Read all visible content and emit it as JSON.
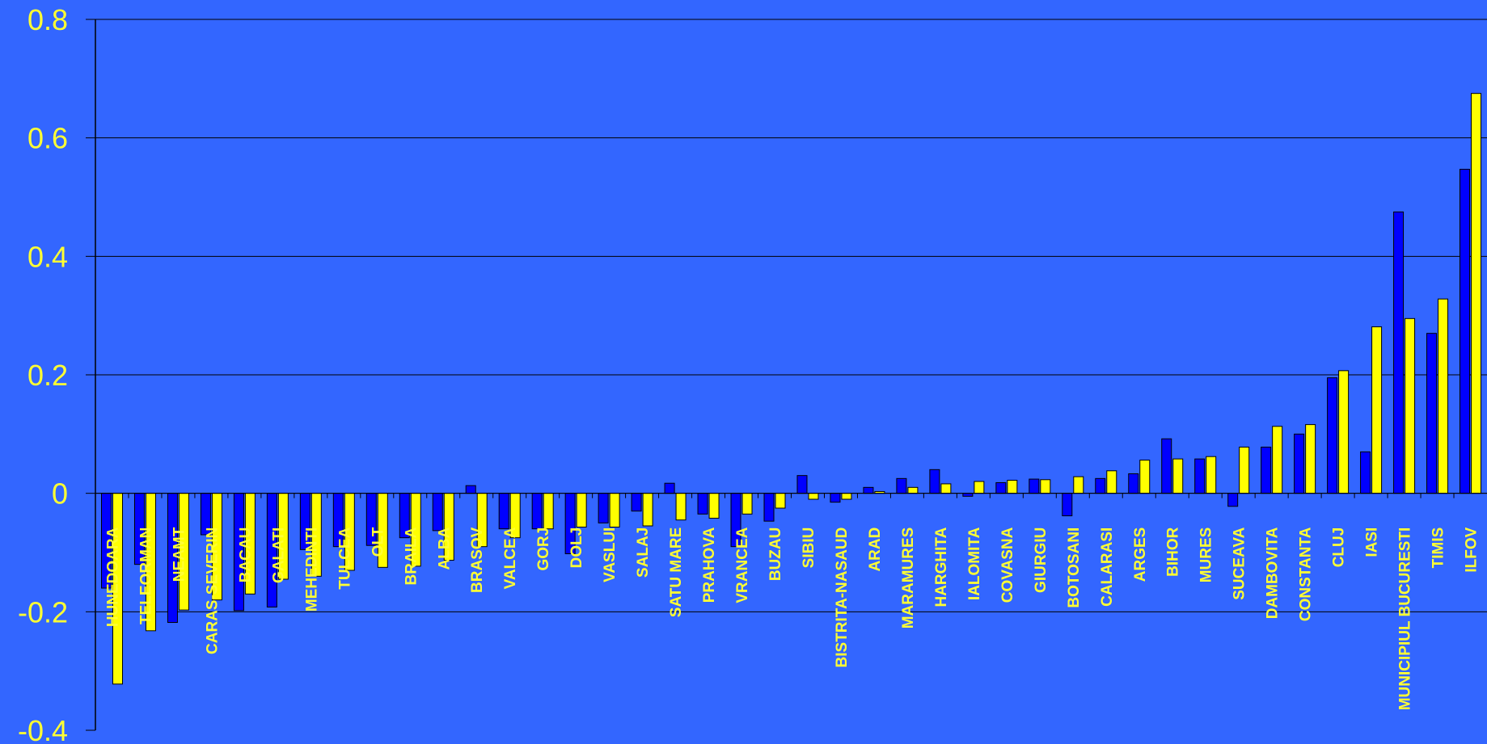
{
  "chart_data": {
    "type": "bar",
    "ylim": [
      -0.4,
      0.8
    ],
    "yticks": [
      0.8,
      0.6,
      0.4,
      0.2,
      0,
      -0.2,
      -0.4
    ],
    "ytick_labels": [
      "0.8",
      "0.6",
      "0.4",
      "0.2",
      "0",
      "-0.2",
      "-0.4"
    ],
    "grid": true,
    "categories": [
      "HUNEDOARA",
      "TELEORMAN",
      "NEAMT",
      "CARAS-SEVERIN",
      "BACAU",
      "GALATI",
      "MEHEDINTI",
      "TULCEA",
      "OLT",
      "BRAILA",
      "ALBA",
      "BRASOV",
      "VALCEA",
      "GORJ",
      "DOLJ",
      "VASLUI",
      "SALAJ",
      "SATU MARE",
      "PRAHOVA",
      "VRANCEA",
      "BUZAU",
      "SIBIU",
      "BISTRITA-NASAUD",
      "ARAD",
      "MARAMURES",
      "HARGHITA",
      "IALOMITA",
      "COVASNA",
      "GIURGIU",
      "BOTOSANI",
      "CALARASI",
      "ARGES",
      "BIHOR",
      "MURES",
      "SUCEAVA",
      "DAMBOVITA",
      "CONSTANTA",
      "CLUJ",
      "IASI",
      "MUNICIPIUL BUCURESTI",
      "TIMIS",
      "ILFOV"
    ],
    "series": [
      {
        "color": "#0000ff",
        "values": [
          -0.16,
          -0.12,
          -0.218,
          -0.07,
          -0.198,
          -0.192,
          -0.095,
          -0.09,
          -0.088,
          -0.075,
          -0.063,
          0.013,
          -0.06,
          -0.06,
          -0.102,
          -0.05,
          -0.03,
          0.017,
          -0.035,
          -0.09,
          -0.047,
          0.03,
          -0.015,
          0.01,
          0.025,
          0.04,
          -0.005,
          0.018,
          0.024,
          -0.038,
          0.025,
          0.033,
          0.092,
          0.058,
          -0.022,
          0.078,
          0.1,
          0.195,
          0.07,
          0.475,
          0.27,
          0.547
        ]
      },
      {
        "color": "#ffff00",
        "values": [
          -0.322,
          -0.232,
          -0.197,
          -0.18,
          -0.17,
          -0.145,
          -0.14,
          -0.13,
          -0.125,
          -0.123,
          -0.113,
          -0.09,
          -0.075,
          -0.06,
          -0.057,
          -0.057,
          -0.055,
          -0.045,
          -0.042,
          -0.035,
          -0.025,
          -0.01,
          -0.01,
          0.003,
          0.01,
          0.016,
          0.02,
          0.022,
          0.023,
          0.028,
          0.038,
          0.056,
          0.058,
          0.062,
          0.078,
          0.113,
          0.116,
          0.207,
          0.281,
          0.295,
          0.328,
          0.675
        ]
      }
    ]
  }
}
